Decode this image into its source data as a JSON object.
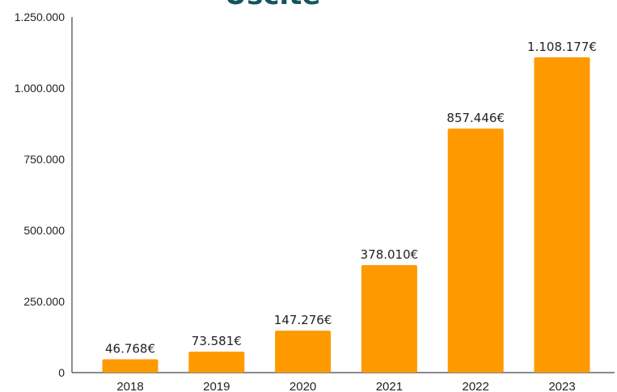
{
  "chart_data": {
    "type": "bar",
    "title": "Uscite",
    "categories": [
      "2018",
      "2019",
      "2020",
      "2021",
      "2022",
      "2023"
    ],
    "values": [
      46768,
      73581,
      147276,
      378010,
      857446,
      1108177
    ],
    "data_labels": [
      "46.768€",
      "73.581€",
      "147.276€",
      "378.010€",
      "857.446€",
      "1.108.177€"
    ],
    "yticks": [
      {
        "value": 0,
        "label": "0"
      },
      {
        "value": 250000,
        "label": "250.000"
      },
      {
        "value": 500000,
        "label": "500.000"
      },
      {
        "value": 750000,
        "label": "750.000"
      },
      {
        "value": 1000000,
        "label": "1.000.000"
      },
      {
        "value": 1250000,
        "label": "1.250.000"
      }
    ],
    "ylim": [
      0,
      1250000
    ],
    "xlabel": "",
    "ylabel": "",
    "grid": false,
    "bar_color": "#ff9900",
    "title_color": "#17555e"
  }
}
